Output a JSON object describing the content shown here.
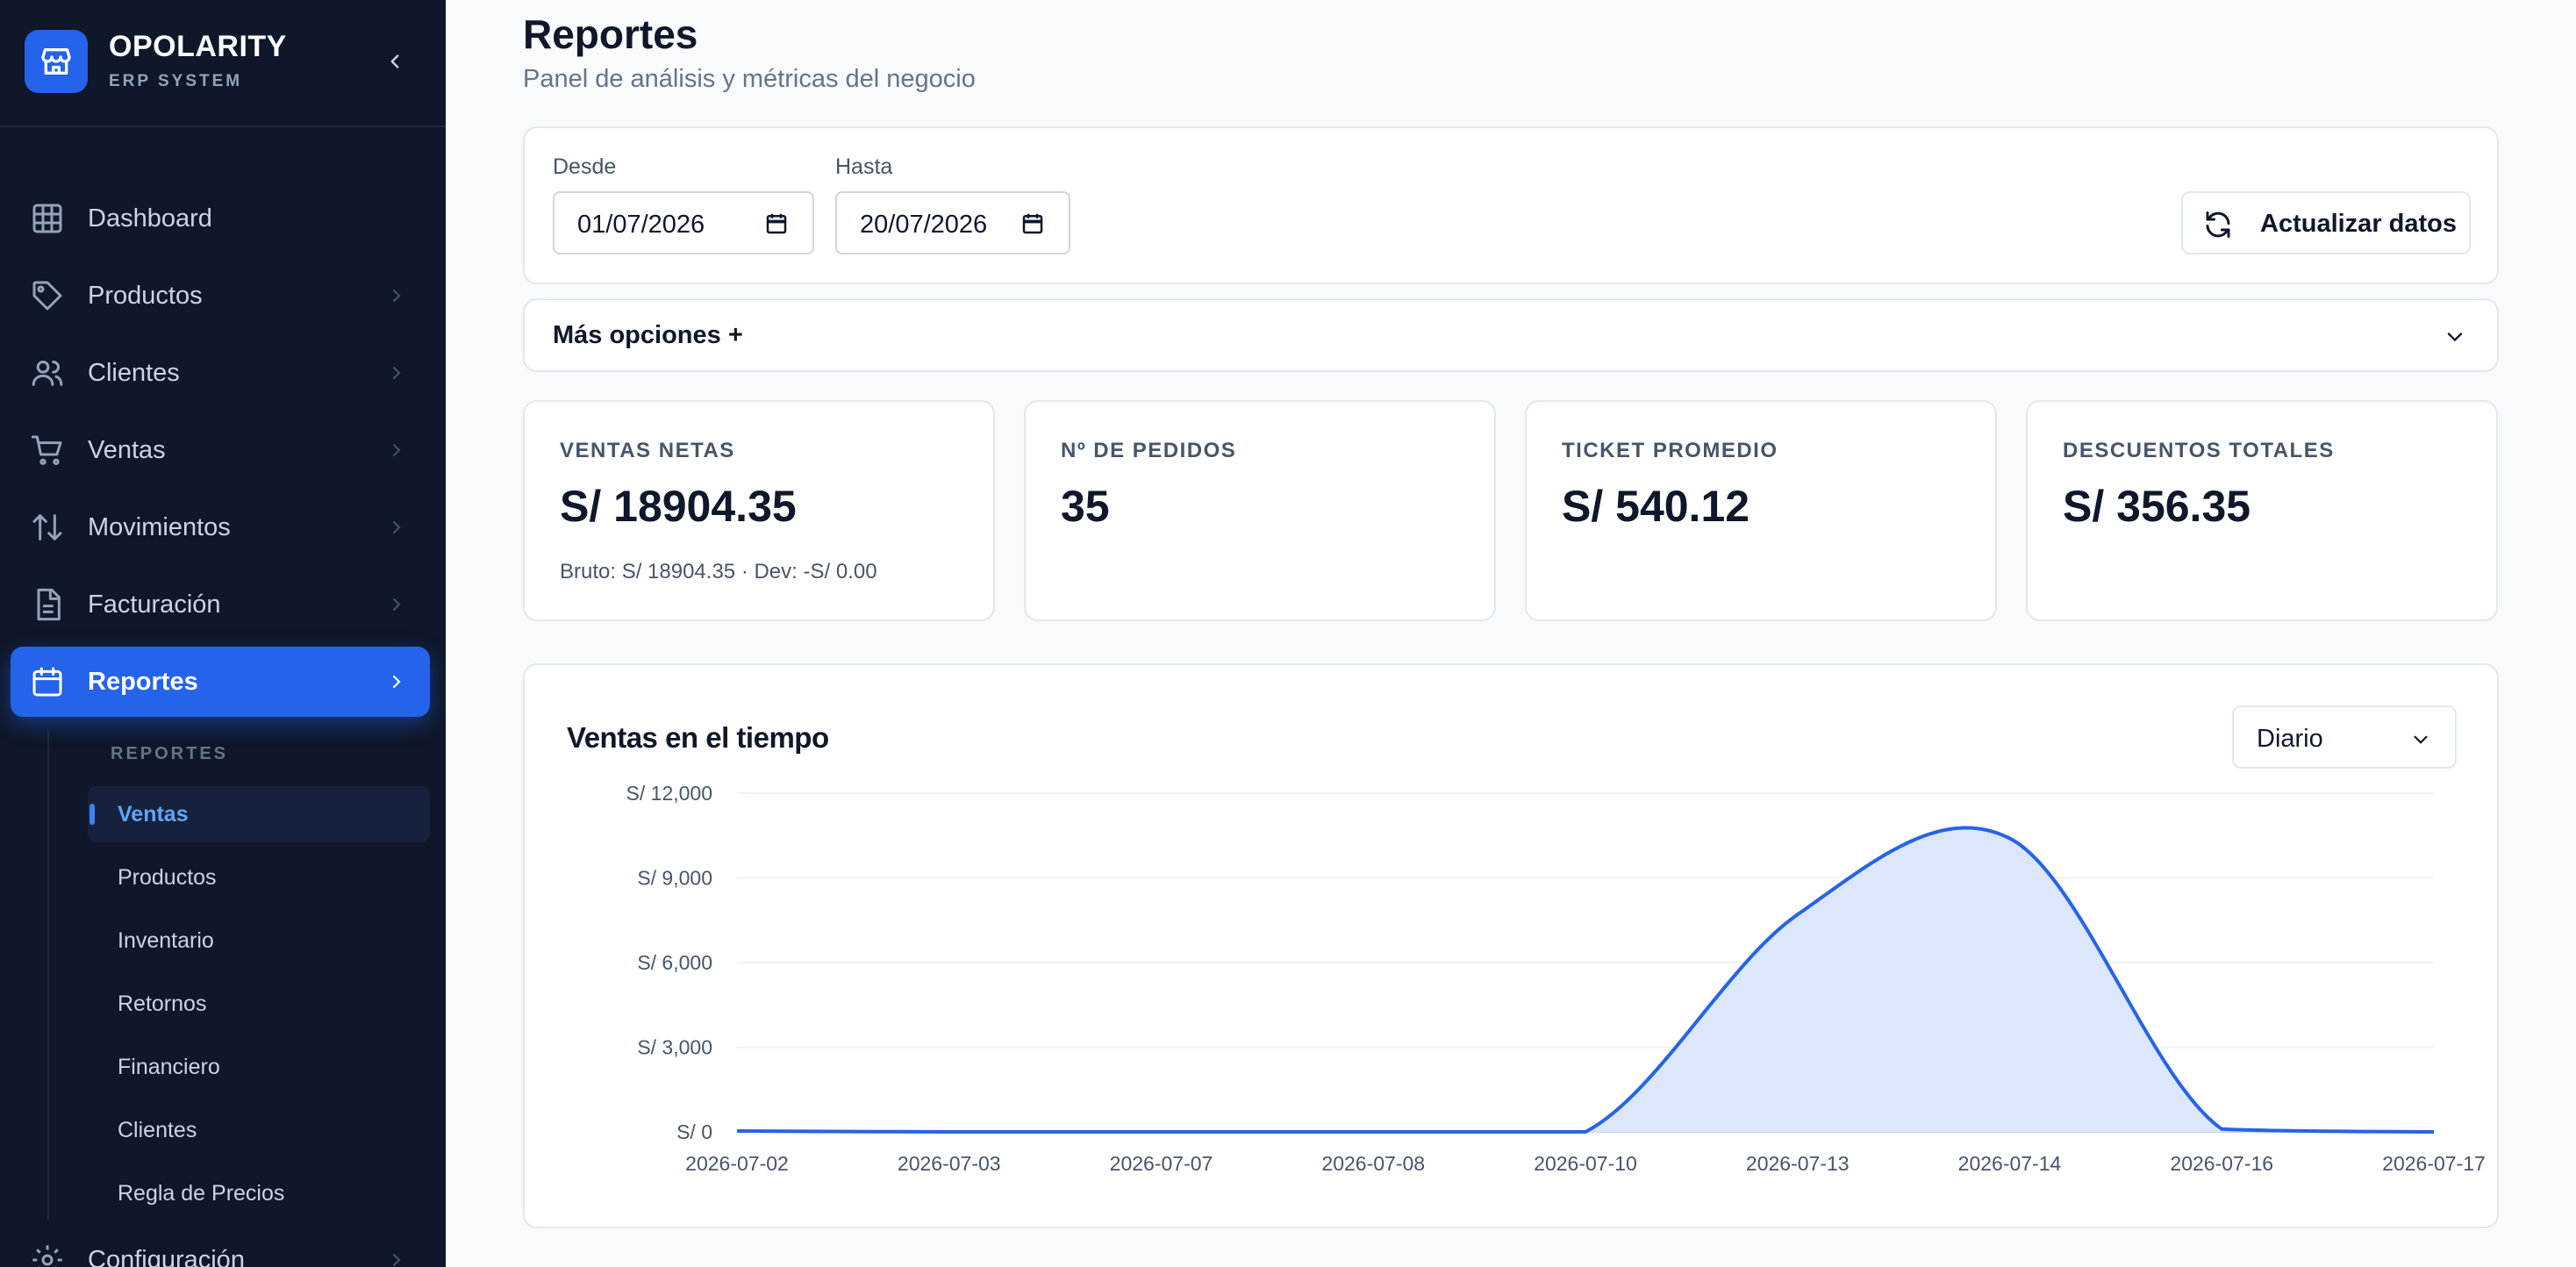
{
  "sidebar": {
    "brand_name": "OPOLARITY",
    "brand_sub": "ERP SYSTEM",
    "items": [
      {
        "label": "Dashboard"
      },
      {
        "label": "Productos"
      },
      {
        "label": "Clientes"
      },
      {
        "label": "Ventas"
      },
      {
        "label": "Movimientos"
      },
      {
        "label": "Facturación"
      },
      {
        "label": "Reportes"
      },
      {
        "label": "Configuración"
      }
    ],
    "submenu_heading": "REPORTES",
    "submenu": [
      {
        "label": "Ventas"
      },
      {
        "label": "Productos"
      },
      {
        "label": "Inventario"
      },
      {
        "label": "Retornos"
      },
      {
        "label": "Financiero"
      },
      {
        "label": "Clientes"
      },
      {
        "label": "Regla de Precios"
      }
    ]
  },
  "header": {
    "title": "Reportes",
    "subtitle": "Panel de análisis y métricas del negocio"
  },
  "filters": {
    "from_label": "Desde",
    "from_value": "01/07/2026",
    "to_label": "Hasta",
    "to_value": "20/07/2026",
    "refresh_label": "Actualizar datos",
    "more_options_label": "Más opciones +"
  },
  "kpis": [
    {
      "label": "VENTAS NETAS",
      "value": "S/ 18904.35",
      "note": "Bruto: S/ 18904.35 · Dev: -S/ 0.00"
    },
    {
      "label": "Nº DE PEDIDOS",
      "value": "35",
      "note": ""
    },
    {
      "label": "TICKET PROMEDIO",
      "value": "S/ 540.12",
      "note": ""
    },
    {
      "label": "DESCUENTOS TOTALES",
      "value": "S/ 356.35",
      "note": ""
    }
  ],
  "chart": {
    "title": "Ventas en el tiempo",
    "period_value": "Diario"
  },
  "colors": {
    "accent": "#2563eb",
    "sidebar_bg": "#0f172a",
    "area_fill": "#dbe6fb"
  },
  "chart_data": {
    "type": "area",
    "title": "Ventas en el tiempo",
    "xlabel": "",
    "ylabel": "",
    "x": [
      "2026-07-02",
      "2026-07-03",
      "2026-07-07",
      "2026-07-08",
      "2026-07-10",
      "2026-07-13",
      "2026-07-14",
      "2026-07-16",
      "2026-07-17"
    ],
    "series": [
      {
        "values": [
          30,
          0,
          0,
          0,
          0,
          7700,
          10400,
          100,
          0
        ]
      }
    ],
    "ylim": [
      0,
      12000
    ],
    "yticks": [
      0,
      3000,
      6000,
      9000,
      12000
    ],
    "ytick_labels": [
      "S/ 0",
      "S/ 3,000",
      "S/ 6,000",
      "S/ 9,000",
      "S/ 12,000"
    ],
    "grid": true,
    "legend": "none"
  }
}
